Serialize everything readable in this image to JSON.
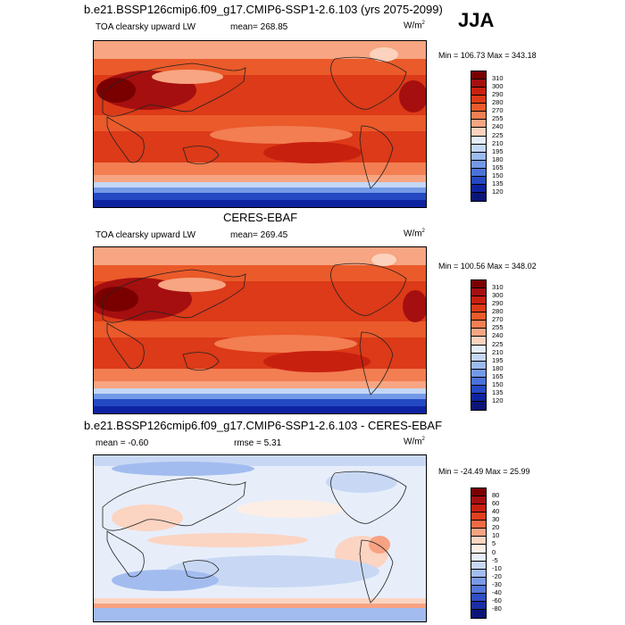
{
  "season": "JJA",
  "panels": [
    {
      "title": "b.e21.BSSP126cmip6.f09_g17.CMIP6-SSP1-2.6.103 (yrs 2075-2099)",
      "left_label": "TOA clearsky upward LW",
      "mean_label": "mean= 268.85",
      "units": "W/m",
      "units_sup": "2",
      "minmax": "Min = 106.73 Max = 343.18",
      "colorbar_labels": [
        "310",
        "300",
        "290",
        "280",
        "270",
        "255",
        "240",
        "225",
        "210",
        "195",
        "180",
        "165",
        "150",
        "135",
        "120"
      ]
    },
    {
      "title": "CERES-EBAF",
      "left_label": "TOA clearsky upward LW",
      "mean_label": "mean= 269.45",
      "units": "W/m",
      "units_sup": "2",
      "minmax": "Min = 100.56 Max = 348.02",
      "colorbar_labels": [
        "310",
        "300",
        "290",
        "280",
        "270",
        "255",
        "240",
        "225",
        "210",
        "195",
        "180",
        "165",
        "150",
        "135",
        "120"
      ]
    },
    {
      "title": "b.e21.BSSP126cmip6.f09_g17.CMIP6-SSP1-2.6.103 - CERES-EBAF",
      "left_label": "mean =  -0.60",
      "mean_label": "rmse =   5.31",
      "units": "W/m",
      "units_sup": "2",
      "minmax": "Min = -24.49 Max =  25.99",
      "colorbar_labels": [
        "80",
        "60",
        "40",
        "30",
        "20",
        "10",
        "5",
        "0",
        "-5",
        "-10",
        "-20",
        "-30",
        "-40",
        "-60",
        "-80"
      ]
    }
  ],
  "colors": {
    "abs_scale": [
      "#7a0000",
      "#a50f0f",
      "#c8200f",
      "#dc3a18",
      "#ea5a2a",
      "#f27e52",
      "#f7a582",
      "#fbd2bd",
      "#e4eefa",
      "#c4d7f5",
      "#9cbbef",
      "#7399e6",
      "#4a72d8",
      "#2549c2",
      "#0d23a0",
      "#0a1577"
    ],
    "diff_scale": [
      "#7a0000",
      "#a50f0f",
      "#c8200f",
      "#e0401f",
      "#ef6a45",
      "#f7a283",
      "#fcd4c2",
      "#fdeee5",
      "#e7eefa",
      "#c8d8f4",
      "#a3bcef",
      "#7b9ae6",
      "#5476d8",
      "#2f4fc4",
      "#1a2ea5",
      "#0a1577"
    ]
  }
}
